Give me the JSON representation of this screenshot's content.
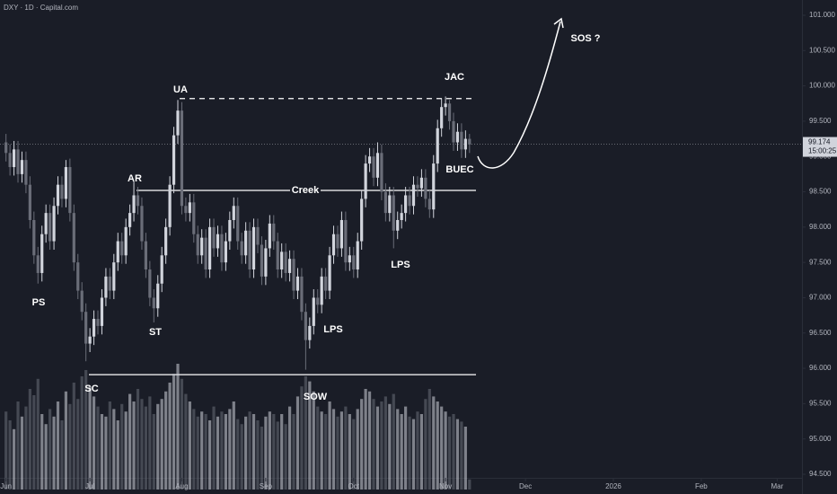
{
  "chart_data": {
    "type": "candlestick",
    "title": "DXY · 1D · Capital.com",
    "x": [
      0,
      1,
      2,
      3,
      4,
      5,
      6,
      7,
      8,
      9,
      10,
      11,
      12,
      13,
      14,
      15,
      16,
      17,
      18,
      19,
      20,
      21,
      22,
      23,
      24,
      25,
      26,
      27,
      28,
      29,
      30,
      31,
      32,
      33,
      34,
      35,
      36,
      37,
      38,
      39,
      40,
      41,
      42,
      43,
      44,
      45,
      46,
      47,
      48,
      49,
      50,
      51,
      52,
      53,
      54,
      55,
      56,
      57,
      58,
      59,
      60,
      61,
      62,
      63,
      64,
      65,
      66,
      67,
      68,
      69,
      70,
      71,
      72,
      73,
      74,
      75,
      76,
      77,
      78,
      79,
      80,
      81,
      82,
      83,
      84,
      85,
      86,
      87,
      88,
      89,
      90,
      91,
      92,
      93,
      94,
      95,
      96,
      97,
      98,
      99,
      100,
      101,
      102,
      103,
      104,
      105,
      106,
      107,
      108,
      109,
      110,
      111,
      112,
      113,
      114,
      115,
      116
    ],
    "open": [
      99.2,
      99.05,
      98.85,
      99.1,
      98.75,
      98.95,
      98.6,
      98.1,
      97.6,
      97.35,
      97.9,
      98.2,
      97.8,
      98.3,
      98.6,
      98.4,
      98.85,
      98.2,
      97.5,
      97.1,
      96.8,
      96.35,
      96.45,
      96.7,
      96.6,
      97.0,
      97.3,
      97.1,
      97.5,
      97.8,
      97.6,
      98.0,
      98.2,
      98.45,
      98.3,
      97.8,
      97.4,
      97.0,
      96.85,
      97.2,
      97.6,
      98.0,
      98.6,
      99.3,
      99.65,
      98.3,
      98.2,
      98.35,
      97.9,
      97.6,
      97.85,
      97.4,
      98.0,
      97.7,
      97.9,
      97.5,
      97.8,
      98.1,
      98.3,
      97.8,
      97.6,
      97.95,
      97.4,
      98.0,
      97.75,
      97.3,
      97.7,
      98.05,
      97.8,
      97.4,
      97.65,
      97.35,
      97.55,
      97.1,
      97.3,
      96.8,
      96.4,
      96.6,
      97.0,
      96.9,
      97.3,
      97.1,
      97.6,
      97.9,
      97.7,
      98.1,
      97.5,
      97.6,
      97.4,
      97.8,
      98.4,
      98.9,
      99.0,
      98.7,
      99.05,
      98.5,
      98.2,
      98.45,
      97.95,
      98.1,
      98.2,
      98.45,
      98.3,
      98.6,
      98.55,
      98.7,
      98.4,
      98.25,
      98.9,
      99.4,
      99.7,
      99.75,
      99.5,
      99.2,
      99.35,
      99.1,
      99.25
    ],
    "high": [
      99.32,
      99.17,
      99.22,
      99.22,
      99.07,
      99.07,
      98.72,
      98.22,
      97.72,
      98.02,
      98.32,
      98.32,
      98.42,
      98.72,
      98.72,
      98.95,
      98.97,
      98.32,
      97.62,
      97.22,
      96.92,
      96.57,
      96.82,
      96.82,
      97.12,
      97.42,
      97.42,
      97.62,
      97.92,
      97.92,
      98.12,
      98.32,
      98.65,
      98.57,
      98.42,
      97.92,
      97.52,
      97.12,
      97.32,
      97.72,
      98.12,
      98.72,
      99.42,
      99.8,
      99.77,
      98.42,
      98.47,
      98.47,
      98.02,
      97.97,
      97.97,
      98.12,
      98.12,
      98.02,
      98.02,
      97.92,
      98.22,
      98.42,
      98.42,
      97.92,
      98.07,
      98.07,
      98.12,
      98.12,
      97.87,
      97.82,
      98.17,
      98.17,
      97.92,
      97.77,
      97.77,
      97.67,
      97.67,
      97.42,
      97.42,
      96.92,
      96.72,
      97.12,
      97.12,
      97.42,
      97.42,
      97.72,
      98.02,
      98.02,
      98.22,
      98.22,
      97.72,
      97.72,
      97.92,
      98.52,
      99.02,
      99.12,
      99.12,
      99.2,
      99.17,
      98.62,
      98.57,
      98.57,
      98.22,
      98.32,
      98.57,
      98.57,
      98.72,
      98.72,
      98.82,
      98.82,
      98.52,
      99.02,
      99.52,
      99.82,
      99.85,
      99.8,
      99.62,
      99.47,
      99.47,
      99.37,
      99.32
    ],
    "low": [
      98.93,
      98.73,
      98.73,
      98.63,
      98.63,
      98.48,
      97.98,
      97.48,
      97.2,
      97.23,
      97.78,
      97.68,
      97.68,
      98.18,
      98.28,
      98.28,
      98.08,
      97.38,
      96.98,
      96.68,
      96.1,
      96.23,
      96.33,
      96.48,
      96.48,
      96.88,
      96.98,
      96.98,
      97.38,
      97.48,
      97.48,
      97.88,
      98.08,
      98.18,
      97.68,
      97.28,
      96.88,
      96.65,
      96.73,
      97.08,
      97.48,
      97.88,
      98.48,
      99.18,
      98.18,
      98.08,
      98.08,
      97.78,
      97.48,
      97.48,
      97.28,
      97.28,
      97.58,
      97.58,
      97.38,
      97.38,
      97.68,
      97.98,
      97.68,
      97.48,
      97.48,
      97.28,
      97.28,
      97.63,
      97.18,
      97.18,
      97.58,
      97.68,
      97.28,
      97.28,
      97.23,
      97.23,
      96.98,
      96.98,
      96.68,
      95.98,
      96.28,
      96.48,
      96.78,
      96.78,
      96.98,
      96.98,
      97.48,
      97.58,
      97.58,
      97.38,
      97.38,
      97.28,
      97.28,
      97.68,
      98.28,
      98.78,
      98.58,
      98.58,
      98.38,
      98.08,
      98.08,
      97.7,
      97.83,
      97.98,
      98.08,
      98.18,
      98.18,
      98.43,
      98.43,
      98.28,
      98.13,
      98.13,
      98.78,
      99.28,
      99.58,
      99.38,
      99.08,
      99.08,
      98.98,
      98.98,
      99.05
    ],
    "close": [
      99.05,
      98.85,
      99.1,
      98.75,
      98.95,
      98.6,
      98.1,
      97.6,
      97.35,
      97.9,
      98.2,
      97.8,
      98.3,
      98.6,
      98.4,
      98.85,
      98.2,
      97.5,
      97.1,
      96.8,
      96.35,
      96.45,
      96.7,
      96.6,
      97.0,
      97.3,
      97.1,
      97.5,
      97.8,
      97.6,
      98.0,
      98.2,
      98.45,
      98.3,
      97.8,
      97.4,
      97.0,
      96.85,
      97.2,
      97.6,
      98.0,
      98.6,
      99.3,
      99.65,
      98.3,
      98.2,
      98.35,
      97.9,
      97.6,
      97.85,
      97.4,
      98.0,
      97.7,
      97.9,
      97.5,
      97.8,
      98.1,
      98.3,
      97.8,
      97.6,
      97.95,
      97.4,
      98.0,
      97.75,
      97.3,
      97.7,
      98.05,
      97.8,
      97.4,
      97.65,
      97.35,
      97.55,
      97.1,
      97.3,
      96.8,
      96.4,
      96.6,
      97.0,
      96.9,
      97.3,
      97.1,
      97.6,
      97.9,
      97.7,
      98.1,
      97.5,
      97.6,
      97.4,
      97.8,
      98.4,
      98.9,
      99.0,
      98.7,
      99.05,
      98.5,
      98.2,
      98.45,
      97.95,
      98.1,
      98.2,
      98.45,
      98.3,
      98.6,
      98.55,
      98.7,
      98.4,
      98.25,
      98.9,
      99.4,
      99.7,
      99.75,
      99.5,
      99.2,
      99.35,
      99.1,
      99.25,
      99.17
    ],
    "volume": [
      62,
      55,
      48,
      70,
      58,
      66,
      80,
      75,
      88,
      60,
      52,
      64,
      58,
      70,
      55,
      78,
      68,
      85,
      72,
      90,
      95,
      82,
      74,
      66,
      60,
      58,
      70,
      64,
      55,
      68,
      62,
      76,
      70,
      80,
      72,
      66,
      74,
      60,
      68,
      72,
      78,
      85,
      92,
      100,
      88,
      76,
      70,
      64,
      58,
      62,
      60,
      55,
      66,
      58,
      62,
      60,
      64,
      70,
      56,
      52,
      58,
      62,
      60,
      55,
      50,
      58,
      62,
      60,
      54,
      60,
      52,
      66,
      60,
      74,
      82,
      90,
      86,
      78,
      66,
      62,
      60,
      70,
      64,
      58,
      62,
      66,
      60,
      56,
      64,
      72,
      80,
      78,
      72,
      66,
      70,
      74,
      68,
      76,
      64,
      60,
      66,
      58,
      56,
      62,
      60,
      72,
      80,
      74,
      70,
      66,
      62,
      58,
      60,
      56,
      54,
      50,
      8
    ],
    "vlim": [
      0,
      100
    ],
    "xlim": [
      -1.5,
      199.2
    ],
    "xticks": [
      {
        "value": 0,
        "label": "Jun"
      },
      {
        "value": 21,
        "label": "Jul"
      },
      {
        "value": 44,
        "label": "Aug"
      },
      {
        "value": 65,
        "label": "Sep"
      },
      {
        "value": 87,
        "label": "Oct"
      },
      {
        "value": 110,
        "label": "Nov"
      },
      {
        "value": 130,
        "label": "Dec"
      },
      {
        "value": 152,
        "label": "2026"
      },
      {
        "value": 174,
        "label": "Feb"
      },
      {
        "value": 193,
        "label": "Mar"
      }
    ],
    "ylim": [
      94.5,
      101
    ],
    "yticks": [
      {
        "value": 94.5,
        "label": "94.500"
      },
      {
        "value": 95,
        "label": "95.000"
      },
      {
        "value": 95.5,
        "label": "95.500"
      },
      {
        "value": 96,
        "label": "96.000"
      },
      {
        "value": 96.5,
        "label": "96.500"
      },
      {
        "value": 97,
        "label": "97.000"
      },
      {
        "value": 97.5,
        "label": "97.500"
      },
      {
        "value": 98,
        "label": "98.000"
      },
      {
        "value": 98.5,
        "label": "98.500"
      },
      {
        "value": 99,
        "label": "99.000"
      },
      {
        "value": 99.5,
        "label": "99.500"
      },
      {
        "value": 100,
        "label": "100.000"
      },
      {
        "value": 100.5,
        "label": "100.500"
      },
      {
        "value": 101,
        "label": "101.000"
      }
    ],
    "last_price": 99.174,
    "countdown": "15:00:25",
    "levels": [
      98.52,
      99.82,
      95.91
    ],
    "up_color": "#d1d4dc",
    "down_color": "#6a6d78",
    "annotations": [
      "PS",
      "SC",
      "AR",
      "ST",
      "UA",
      "Creek",
      "SOW",
      "LPS",
      "LPS",
      "JAC",
      "BUEC",
      "SOS ?"
    ]
  }
}
